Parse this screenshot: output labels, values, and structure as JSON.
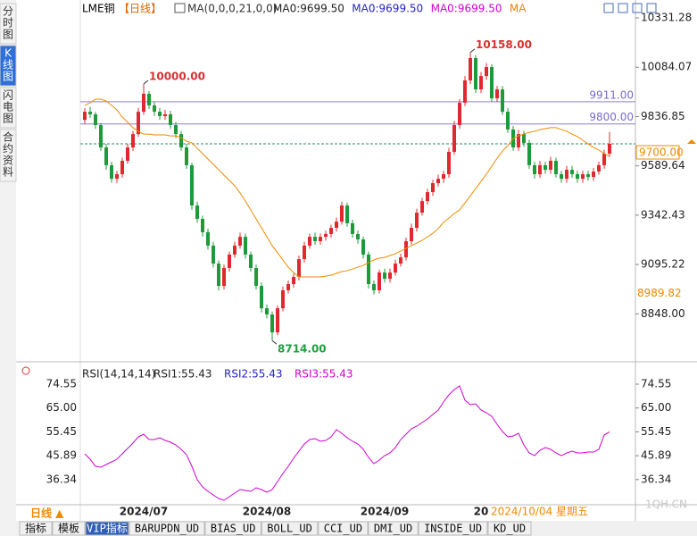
{
  "sidebar": {
    "tabs": [
      "分时图",
      "K线图",
      "闪电图",
      "合约资料"
    ]
  },
  "chart_data": {
    "type": "candlestick",
    "header": {
      "symbol": "LME铜",
      "period": "【日线】",
      "indicator": "MA(0,0,0,21,0,0)",
      "items": [
        {
          "text": "MA0:9699.50",
          "color": "#222222"
        },
        {
          "text": "MA0:9699.50",
          "color": "#2323c8"
        },
        {
          "text": "MA0:9699.50",
          "color": "#d000d0"
        },
        {
          "text": "MA",
          "color": "#f08000"
        }
      ]
    },
    "categories": [
      null,
      null,
      null,
      null,
      null,
      null,
      null,
      null,
      null,
      null,
      null,
      "2024/07",
      null,
      null,
      null,
      null,
      null,
      null,
      null,
      null,
      null,
      null,
      null,
      null,
      null,
      null,
      null,
      null,
      null,
      null,
      null,
      null,
      null,
      null,
      "2024/08",
      null,
      null,
      null,
      null,
      null,
      null,
      null,
      null,
      null,
      null,
      null,
      null,
      null,
      null,
      null,
      null,
      null,
      null,
      null,
      null,
      null,
      "2024/09",
      null,
      null,
      null,
      null,
      null,
      null,
      null,
      null,
      null,
      null,
      null,
      null,
      null,
      null,
      null,
      null,
      null,
      "20",
      null,
      null,
      null,
      null,
      null,
      null,
      null,
      null,
      null,
      null,
      null,
      null,
      null,
      null,
      null,
      null,
      null,
      null,
      null,
      null,
      null,
      null,
      null,
      null
    ],
    "cursor_date": "2024/10/04 星期五",
    "open": [
      9820,
      9861,
      9848,
      9794,
      9682,
      9593,
      9525,
      9548,
      9615,
      9682,
      9749,
      9861,
      9951,
      9893,
      9861,
      9839,
      9848,
      9794,
      9749,
      9682,
      9593,
      9391,
      9324,
      9257,
      9190,
      9100,
      8988,
      9078,
      9145,
      9190,
      9234,
      9145,
      9078,
      8988,
      8876,
      8845,
      8755,
      8876,
      8966,
      8997,
      9033,
      9122,
      9190,
      9234,
      9212,
      9234,
      9248,
      9279,
      9310,
      9391,
      9302,
      9248,
      9221,
      9145,
      8997,
      8966,
      9055,
      9024,
      9055,
      9100,
      9131,
      9212,
      9279,
      9355,
      9413,
      9458,
      9503,
      9525,
      9548,
      9660,
      9794,
      9906,
      10018,
      10130,
      9973,
      10040,
      10085,
      9928,
      9973,
      9861,
      9772,
      9682,
      9749,
      9705,
      9593,
      9548,
      9593,
      9570,
      9615,
      9548,
      9525,
      9570,
      9548,
      9525,
      9548,
      9534,
      9561,
      9593,
      9651
    ],
    "high": [
      9880,
      9885,
      9860,
      9805,
      9700,
      9610,
      9565,
      9630,
      9700,
      9765,
      9880,
      10000,
      9965,
      9910,
      9880,
      9870,
      9865,
      9810,
      9765,
      9700,
      9605,
      9410,
      9340,
      9275,
      9210,
      9115,
      9095,
      9160,
      9210,
      9255,
      9250,
      9160,
      9095,
      9005,
      8895,
      8860,
      8890,
      8985,
      9015,
      9050,
      9140,
      9210,
      9250,
      9255,
      9250,
      9265,
      9295,
      9330,
      9410,
      9405,
      9320,
      9265,
      9235,
      9160,
      9015,
      9070,
      9075,
      9075,
      9120,
      9150,
      9230,
      9300,
      9375,
      9430,
      9475,
      9520,
      9545,
      9565,
      9680,
      9815,
      9925,
      10040,
      10158,
      10145,
      10060,
      10105,
      10100,
      9990,
      9990,
      9880,
      9790,
      9770,
      9765,
      9720,
      9610,
      9615,
      9610,
      9635,
      9630,
      9565,
      9590,
      9590,
      9565,
      9565,
      9565,
      9580,
      9610,
      9670,
      9760
    ],
    "low": [
      9800,
      9830,
      9775,
      9665,
      9570,
      9505,
      9505,
      9530,
      9600,
      9665,
      9735,
      9845,
      9875,
      9840,
      9820,
      9820,
      9775,
      9730,
      9665,
      9575,
      9370,
      9305,
      9235,
      9170,
      9080,
      8965,
      8970,
      9060,
      9130,
      9175,
      9125,
      9060,
      8970,
      8855,
      8825,
      8714,
      8740,
      8860,
      8950,
      8980,
      9015,
      9105,
      9175,
      9195,
      9195,
      9215,
      9230,
      9260,
      9295,
      9285,
      9230,
      9200,
      9125,
      8975,
      8945,
      8950,
      9005,
      9005,
      9040,
      9085,
      9115,
      9195,
      9260,
      9340,
      9395,
      9440,
      9485,
      9505,
      9530,
      9645,
      9775,
      9890,
      10000,
      9955,
      9955,
      10020,
      9910,
      9910,
      9845,
      9755,
      9665,
      9665,
      9685,
      9575,
      9525,
      9530,
      9550,
      9550,
      9530,
      9505,
      9505,
      9530,
      9505,
      9505,
      9515,
      9515,
      9545,
      9575,
      9635
    ],
    "close": [
      9861,
      9848,
      9794,
      9682,
      9593,
      9525,
      9548,
      9615,
      9682,
      9749,
      9861,
      9951,
      9893,
      9861,
      9839,
      9848,
      9794,
      9749,
      9682,
      9593,
      9391,
      9324,
      9257,
      9190,
      9100,
      8988,
      9078,
      9145,
      9190,
      9234,
      9145,
      9078,
      8988,
      8876,
      8845,
      8755,
      8876,
      8966,
      8997,
      9033,
      9122,
      9190,
      9234,
      9212,
      9234,
      9248,
      9279,
      9310,
      9391,
      9302,
      9248,
      9221,
      9145,
      8997,
      8966,
      9055,
      9024,
      9055,
      9100,
      9131,
      9212,
      9279,
      9355,
      9413,
      9458,
      9503,
      9525,
      9548,
      9660,
      9794,
      9906,
      10018,
      10130,
      9973,
      10040,
      10085,
      9928,
      9973,
      9861,
      9772,
      9682,
      9749,
      9705,
      9593,
      9548,
      9593,
      9570,
      9615,
      9548,
      9525,
      9570,
      9548,
      9525,
      9548,
      9534,
      9561,
      9593,
      9651,
      9700
    ],
    "up_color": "#e0282e",
    "down_color": "#1f9a3a",
    "ma": {
      "color": "#f08a00",
      "values": [
        9893,
        9906,
        9924,
        9924,
        9915,
        9893,
        9870,
        9834,
        9808,
        9781,
        9763,
        9749,
        9749,
        9745,
        9745,
        9745,
        9740,
        9740,
        9731,
        9713,
        9705,
        9678,
        9651,
        9624,
        9597,
        9570,
        9543,
        9516,
        9490,
        9454,
        9413,
        9369,
        9324,
        9279,
        9234,
        9190,
        9154,
        9118,
        9082,
        9055,
        9033,
        9033,
        9033,
        9033,
        9033,
        9037,
        9042,
        9051,
        9060,
        9064,
        9073,
        9082,
        9091,
        9105,
        9118,
        9127,
        9131,
        9140,
        9149,
        9163,
        9176,
        9190,
        9203,
        9216,
        9234,
        9252,
        9275,
        9306,
        9328,
        9351,
        9369,
        9404,
        9440,
        9476,
        9512,
        9548,
        9588,
        9628,
        9664,
        9691,
        9727,
        9740,
        9749,
        9758,
        9763,
        9772,
        9776,
        9781,
        9781,
        9772,
        9763,
        9749,
        9736,
        9718,
        9700,
        9682,
        9669,
        9651,
        9637
      ]
    },
    "ylim": [
      8630,
      10421
    ],
    "yticks": [
      10331.28,
      10084.07,
      9836.85,
      9589.64,
      9342.43,
      9095.22,
      {
        "value": 8848,
        "label": "8848.00"
      }
    ],
    "price_lines": [
      {
        "value": 9911,
        "label": "9911.00"
      },
      {
        "value": 9800,
        "label": "9800.00"
      }
    ],
    "last_price": {
      "value": 9700,
      "label": "9700.00"
    },
    "ma_label": {
      "value": 8989.82,
      "label": "8989.82"
    },
    "annotations": [
      {
        "value": 10000,
        "label": "10000.00"
      },
      {
        "value": 10158,
        "label": "10158.00"
      },
      {
        "value": 8714,
        "label": "8714.00"
      }
    ],
    "rsi": {
      "title": "RSI(14,14,14)",
      "items": [
        {
          "text": "RSI1:55.43",
          "color": "#222222"
        },
        {
          "text": "RSI2:55.43",
          "color": "#2323c8"
        },
        {
          "text": "RSI3:55.43",
          "color": "#d000d0"
        }
      ],
      "color": "#d000d0",
      "values": [
        46.65,
        44.5,
        41.64,
        41.28,
        42.36,
        43.43,
        44.5,
        46.65,
        48.79,
        50.94,
        53.45,
        54.52,
        52.37,
        52.37,
        53.09,
        52.02,
        51.3,
        50.23,
        48.44,
        46.29,
        41.64,
        36.28,
        33.41,
        31.62,
        30.19,
        28.76,
        28.05,
        29.48,
        30.91,
        32.34,
        31.98,
        31.62,
        33.06,
        32.34,
        31.27,
        32.34,
        35.56,
        38.78,
        41.64,
        44.86,
        47.72,
        50.58,
        52.37,
        52.73,
        51.66,
        52.02,
        53.45,
        56.31,
        54.88,
        53.09,
        51.66,
        50.58,
        48.44,
        45.22,
        42.71,
        44.15,
        45.93,
        47.01,
        49.15,
        52.37,
        54.52,
        56.67,
        57.74,
        59.17,
        60.6,
        62.39,
        64.18,
        67.4,
        70.26,
        72.4,
        73.83,
        68.11,
        66.32,
        66.68,
        64.18,
        63.1,
        61.67,
        58.45,
        55.59,
        53.45,
        53.8,
        54.88,
        50.23,
        47.01,
        45.93,
        48.08,
        49.15,
        48.44,
        47.01,
        45.93,
        47.01,
        47.72,
        47.01,
        47.01,
        47.36,
        47.36,
        48.44,
        54.16,
        55.43
      ],
      "ylim": [
        26.26,
        79.92
      ],
      "yticks": [
        74.55,
        {
          "value": 65,
          "label": "65.00"
        },
        55.45,
        45.89,
        36.34
      ]
    }
  },
  "footer": {
    "period": "日线 ▲",
    "toolbar": [
      "指标",
      "模板",
      "VIP指标",
      "BARUPDN_UD",
      "BIAS_UD",
      "BOLL_UD",
      "CCI_UD",
      "DMI_UD",
      "INSIDE_UD",
      "KD_UD"
    ],
    "watermark": "1QH.CN"
  }
}
